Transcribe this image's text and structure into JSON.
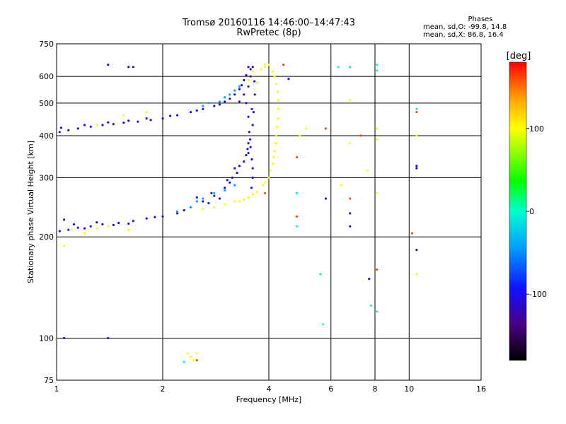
{
  "title": "Tromsø 20160116 14:46:00–14:47:43",
  "subtitle": "RwPretec (8p)",
  "stats": {
    "heading": "Phases",
    "line_o": "mean, sd,O: -99.8, 14.8",
    "line_x": "mean, sd,X:  86.8, 16.4"
  },
  "chart_data": {
    "type": "scatter",
    "xlabel": "Frequency [MHz]",
    "ylabel": "Stationary phase Virtual Height [km]",
    "xscale": "log",
    "yscale": "log",
    "xlim": [
      1,
      16
    ],
    "ylim": [
      75,
      750
    ],
    "xticks": [
      1,
      2,
      4,
      6,
      8,
      10,
      16
    ],
    "xtick_labels": [
      "1",
      "2",
      "4",
      "6",
      "8",
      "10",
      "16"
    ],
    "yticks": [
      75,
      100,
      200,
      300,
      400,
      500,
      600,
      750
    ],
    "ytick_labels": [
      "75",
      "100",
      "200",
      "300",
      "400",
      "500",
      "600",
      "750"
    ],
    "grid": true,
    "colorbar": {
      "label": "[deg]",
      "range": [
        -180,
        180
      ],
      "ticks": [
        -100,
        0,
        100
      ],
      "tick_labels": [
        "-100",
        "0",
        "100"
      ]
    },
    "series": [
      {
        "phase_deg": -100,
        "points": [
          [
            1.02,
            410
          ],
          [
            1.08,
            415
          ],
          [
            1.15,
            420
          ],
          [
            1.25,
            425
          ],
          [
            1.35,
            430
          ],
          [
            1.45,
            433
          ],
          [
            1.55,
            437
          ],
          [
            1.7,
            440
          ],
          [
            1.85,
            445
          ],
          [
            2.0,
            450
          ],
          [
            2.2,
            460
          ],
          [
            2.4,
            470
          ],
          [
            2.6,
            480
          ],
          [
            2.8,
            490
          ],
          [
            3.0,
            505
          ],
          [
            3.2,
            530
          ],
          [
            3.35,
            565
          ],
          [
            3.45,
            605
          ],
          [
            3.5,
            640
          ],
          [
            1.03,
            422
          ],
          [
            1.2,
            430
          ],
          [
            1.4,
            438
          ],
          [
            1.6,
            443
          ],
          [
            1.8,
            450
          ],
          [
            2.1,
            458
          ],
          [
            2.5,
            475
          ],
          [
            2.9,
            495
          ],
          [
            3.1,
            515
          ],
          [
            3.3,
            550
          ],
          [
            3.4,
            585
          ],
          [
            3.55,
            630
          ],
          [
            3.3,
            505
          ],
          [
            3.4,
            530
          ],
          [
            3.5,
            560
          ],
          [
            3.55,
            600
          ],
          [
            3.6,
            640
          ],
          [
            3.45,
            500
          ],
          [
            3.5,
            455
          ],
          [
            3.52,
            410
          ],
          [
            3.55,
            370
          ],
          [
            3.58,
            340
          ],
          [
            3.6,
            320
          ],
          [
            3.6,
            300
          ],
          [
            3.57,
            280
          ],
          [
            3.62,
            470
          ],
          [
            3.65,
            530
          ],
          [
            3.5,
            355
          ],
          [
            3.54,
            390
          ],
          [
            3.6,
            430
          ],
          [
            3.58,
            480
          ],
          [
            3.64,
            580
          ],
          [
            1.02,
            208
          ],
          [
            1.08,
            210
          ],
          [
            1.15,
            213
          ],
          [
            1.25,
            215
          ],
          [
            1.35,
            218
          ],
          [
            1.5,
            220
          ],
          [
            1.65,
            223
          ],
          [
            1.8,
            227
          ],
          [
            2.0,
            230
          ],
          [
            2.2,
            235
          ],
          [
            2.4,
            245
          ],
          [
            2.6,
            255
          ],
          [
            2.8,
            265
          ],
          [
            3.0,
            280
          ],
          [
            3.15,
            300
          ],
          [
            3.3,
            325
          ],
          [
            3.45,
            350
          ],
          [
            3.5,
            380
          ],
          [
            1.05,
            225
          ],
          [
            1.12,
            218
          ],
          [
            1.2,
            212
          ],
          [
            1.3,
            221
          ],
          [
            1.45,
            217
          ],
          [
            1.6,
            219
          ],
          [
            1.9,
            229
          ],
          [
            2.3,
            240
          ],
          [
            2.7,
            252
          ],
          [
            2.9,
            260
          ],
          [
            3.1,
            290
          ],
          [
            3.25,
            310
          ],
          [
            3.4,
            335
          ],
          [
            3.48,
            365
          ],
          [
            2.5,
            262
          ],
          [
            2.75,
            270
          ],
          [
            3.05,
            295
          ],
          [
            3.2,
            320
          ],
          [
            1.4,
            650
          ],
          [
            1.6,
            640
          ],
          [
            1.65,
            640
          ],
          [
            1.05,
            100
          ],
          [
            1.4,
            100
          ],
          [
            4.55,
            590
          ],
          [
            6.8,
            235
          ],
          [
            6.8,
            215
          ],
          [
            10.5,
            320
          ],
          [
            10.5,
            325
          ],
          [
            10.5,
            183
          ],
          [
            6.8,
            640
          ],
          [
            5.8,
            260
          ],
          [
            7.7,
            150
          ]
        ]
      },
      {
        "phase_deg": -40,
        "points": [
          [
            2.9,
            505
          ],
          [
            3.0,
            520
          ],
          [
            3.1,
            530
          ],
          [
            3.2,
            545
          ],
          [
            3.3,
            560
          ],
          [
            2.6,
            490
          ],
          [
            2.7,
            500
          ],
          [
            2.4,
            245
          ],
          [
            2.6,
            260
          ],
          [
            2.8,
            270
          ],
          [
            3.0,
            275
          ],
          [
            3.2,
            285
          ],
          [
            2.2,
            238
          ],
          [
            2.5,
            255
          ]
        ]
      },
      {
        "phase_deg": 0,
        "points": [
          [
            6.3,
            640
          ],
          [
            8.1,
            650
          ],
          [
            8.1,
            625
          ],
          [
            5.7,
            110
          ],
          [
            7.8,
            125
          ],
          [
            8.1,
            120
          ],
          [
            4.8,
            270
          ],
          [
            4.8,
            215
          ],
          [
            5.6,
            155
          ],
          [
            6.8,
            640
          ],
          [
            10.5,
            480
          ],
          [
            2.3,
            85
          ]
        ]
      },
      {
        "phase_deg": 100,
        "points": [
          [
            3.3,
            255
          ],
          [
            3.5,
            262
          ],
          [
            3.7,
            272
          ],
          [
            3.85,
            285
          ],
          [
            4.0,
            300
          ],
          [
            4.1,
            330
          ],
          [
            4.15,
            360
          ],
          [
            4.2,
            400
          ],
          [
            4.25,
            450
          ],
          [
            4.25,
            510
          ],
          [
            4.2,
            570
          ],
          [
            4.1,
            620
          ],
          [
            4.0,
            650
          ],
          [
            3.9,
            640
          ],
          [
            3.8,
            630
          ],
          [
            3.4,
            258
          ],
          [
            3.6,
            268
          ],
          [
            3.9,
            290
          ],
          [
            4.05,
            315
          ],
          [
            4.12,
            345
          ],
          [
            4.18,
            380
          ],
          [
            4.22,
            425
          ],
          [
            4.26,
            480
          ],
          [
            4.24,
            540
          ],
          [
            4.15,
            600
          ],
          [
            3.9,
            650
          ],
          [
            2.8,
            245
          ],
          [
            3.0,
            250
          ],
          [
            3.2,
            255
          ],
          [
            2.6,
            242
          ],
          [
            3.6,
            620
          ],
          [
            3.7,
            575
          ],
          [
            3.5,
            585
          ],
          [
            1.1,
            210
          ],
          [
            1.2,
            205
          ],
          [
            1.3,
            212
          ],
          [
            1.4,
            215
          ],
          [
            1.6,
            210
          ],
          [
            1.3,
            430
          ],
          [
            1.55,
            460
          ],
          [
            1.8,
            470
          ],
          [
            2.4,
            88
          ],
          [
            2.45,
            86
          ],
          [
            2.5,
            90
          ],
          [
            2.35,
            90
          ],
          [
            1.05,
            188
          ],
          [
            4.9,
            400
          ],
          [
            5.1,
            420
          ],
          [
            6.8,
            380
          ],
          [
            6.8,
            510
          ],
          [
            8.1,
            420
          ],
          [
            8.1,
            390
          ],
          [
            10.5,
            400
          ],
          [
            10.5,
            155
          ],
          [
            8.1,
            270
          ],
          [
            6.4,
            285
          ],
          [
            7.6,
            315
          ]
        ]
      },
      {
        "phase_deg": 160,
        "points": [
          [
            4.4,
            650
          ],
          [
            3.9,
            270
          ],
          [
            4.8,
            345
          ],
          [
            4.8,
            230
          ],
          [
            5.8,
            420
          ],
          [
            6.8,
            260
          ],
          [
            7.3,
            400
          ],
          [
            8.1,
            160
          ],
          [
            10.2,
            205
          ],
          [
            10.5,
            470
          ],
          [
            2.5,
            86
          ]
        ]
      }
    ]
  }
}
